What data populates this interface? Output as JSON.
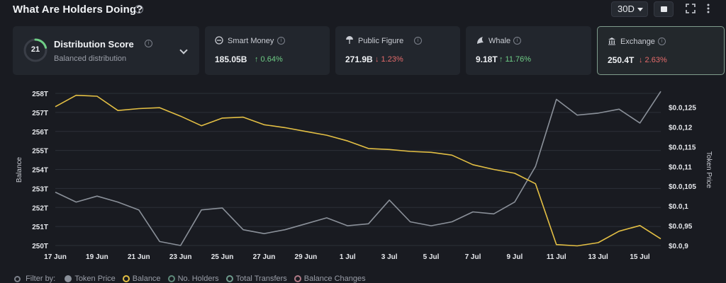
{
  "header": {
    "title": "What Are Holders Doing?",
    "range": "30D"
  },
  "distribution": {
    "score": "21",
    "title": "Distribution Score",
    "subtitle": "Balanced distribution",
    "score_fraction": 0.21
  },
  "cards": [
    {
      "label": "Smart Money",
      "value": "185.05B",
      "change": "↑ 0.64%",
      "direction": "up"
    },
    {
      "label": "Public Figure",
      "value": "271.9B",
      "change": "↓ 1.23%",
      "direction": "down"
    },
    {
      "label": "Whale",
      "value": "9.18T",
      "change": "↑ 11.76%",
      "direction": "up"
    },
    {
      "label": "Exchange",
      "value": "250.4T",
      "change": "↓ 2.63%",
      "direction": "down"
    }
  ],
  "legend": {
    "filter_label": "Filter by:",
    "items": [
      {
        "label": "Token Price",
        "color": "#8a9099"
      },
      {
        "label": "Balance",
        "color": "#e3bf44"
      },
      {
        "label": "No. Holders",
        "color": "#5e8a7a"
      },
      {
        "label": "Total Transfers",
        "color": "#6e9b8d"
      },
      {
        "label": "Balance Changes",
        "color": "#b07a86"
      }
    ]
  },
  "chart_data": {
    "type": "line",
    "ylabel": "Balance",
    "y2label": "Token Price",
    "y_ticks": [
      "250T",
      "251T",
      "252T",
      "253T",
      "254T",
      "255T",
      "256T",
      "257T",
      "258T"
    ],
    "ylim": [
      250,
      258
    ],
    "y2_ticks": [
      "$0.0,9",
      "$0.0,95",
      "$0.0,1",
      "$0.0,105",
      "$0.0,11",
      "$0.0,115",
      "$0.0,12",
      "$0.0,125"
    ],
    "y2lim": [
      0.009,
      0.01285
    ],
    "x_ticks": [
      "17 Jun",
      "19 Jun",
      "21 Jun",
      "23 Jun",
      "25 Jun",
      "27 Jun",
      "29 Jun",
      "1 Jul",
      "3 Jul",
      "5 Jul",
      "7 Jul",
      "9 Jul",
      "11 Jul",
      "13 Jul",
      "15 Jul"
    ],
    "x_count": 30,
    "series": [
      {
        "name": "Balance",
        "axis": "left",
        "color": "#e3bf44",
        "values": [
          257.3,
          257.9,
          257.85,
          257.1,
          257.2,
          257.25,
          256.8,
          256.3,
          256.7,
          256.75,
          256.35,
          256.2,
          256.0,
          255.8,
          255.5,
          255.1,
          255.05,
          254.95,
          254.9,
          254.75,
          254.25,
          254.0,
          253.8,
          253.25,
          250.05,
          249.98,
          250.15,
          250.75,
          251.05,
          250.35
        ]
      },
      {
        "name": "Token Price",
        "axis": "right",
        "color": "#8a9099",
        "values": [
          0.01035,
          0.0101,
          0.01025,
          0.0101,
          0.0099,
          0.0091,
          0.009,
          0.0099,
          0.00995,
          0.0094,
          0.0093,
          0.0094,
          0.00955,
          0.0097,
          0.0095,
          0.00955,
          0.01015,
          0.0096,
          0.0095,
          0.0096,
          0.00985,
          0.0098,
          0.0101,
          0.011,
          0.0127,
          0.0123,
          0.01235,
          0.01245,
          0.0121,
          0.0129
        ]
      }
    ]
  }
}
